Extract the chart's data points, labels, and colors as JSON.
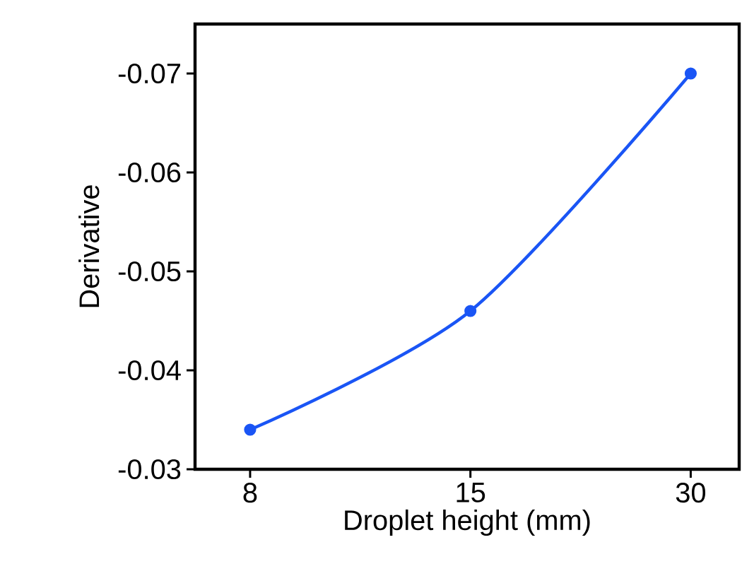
{
  "chart_data": {
    "type": "line",
    "xlabel": "Droplet height  (mm)",
    "ylabel": "Derivative",
    "categories": [
      "8",
      "15",
      "30"
    ],
    "series": [
      {
        "color": "#1a55f5",
        "values": [
          -0.034,
          -0.046,
          -0.07
        ]
      }
    ],
    "ylim": [
      -0.03,
      -0.075
    ],
    "yticks": [
      -0.07,
      -0.06,
      -0.05,
      -0.04,
      -0.03
    ],
    "marker": "circle",
    "line_style": "solid"
  }
}
